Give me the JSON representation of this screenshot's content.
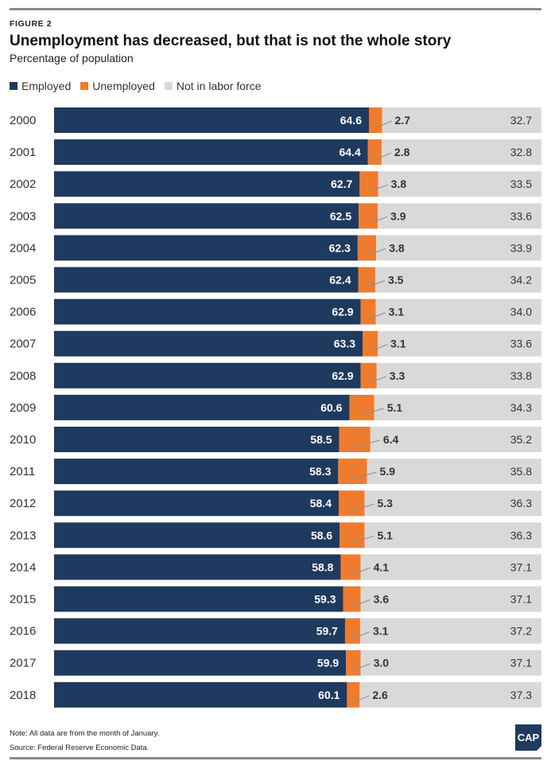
{
  "figure_label": "FIGURE 2",
  "title": "Unemployment has decreased, but that is not the whole story",
  "subtitle": "Percentage of population",
  "notes": {
    "note": "Note: All data are from the month of January.",
    "source": "Source: Federal Reserve Economic Data."
  },
  "logo_text": "CAP",
  "colors": {
    "employed": "#1f3a5f",
    "unemployed": "#ef7c2e",
    "not_in_labor_force": "#d9d9d9",
    "rule": "#8a8a8a"
  },
  "chart_data": {
    "type": "bar",
    "orientation": "horizontal",
    "stacked": true,
    "legend_position": "top-left",
    "grid": false,
    "xlim": [
      0,
      100
    ],
    "categories": [
      "2000",
      "2001",
      "2002",
      "2003",
      "2004",
      "2005",
      "2006",
      "2007",
      "2008",
      "2009",
      "2010",
      "2011",
      "2012",
      "2013",
      "2014",
      "2015",
      "2016",
      "2017",
      "2018"
    ],
    "series": [
      {
        "name": "Employed",
        "values": [
          64.6,
          64.4,
          62.7,
          62.5,
          62.3,
          62.4,
          62.9,
          63.3,
          62.9,
          60.6,
          58.5,
          58.3,
          58.4,
          58.6,
          58.8,
          59.3,
          59.7,
          59.9,
          60.1
        ]
      },
      {
        "name": "Unemployed",
        "values": [
          2.7,
          2.8,
          3.8,
          3.9,
          3.8,
          3.5,
          3.1,
          3.1,
          3.3,
          5.1,
          6.4,
          5.9,
          5.3,
          5.1,
          4.1,
          3.6,
          3.1,
          3.0,
          2.6
        ]
      },
      {
        "name": "Not in labor force",
        "values": [
          32.7,
          32.8,
          33.5,
          33.6,
          33.9,
          34.2,
          34.0,
          33.6,
          33.8,
          34.3,
          35.2,
          35.8,
          36.3,
          36.3,
          37.1,
          37.1,
          37.2,
          37.1,
          37.3
        ]
      }
    ]
  }
}
